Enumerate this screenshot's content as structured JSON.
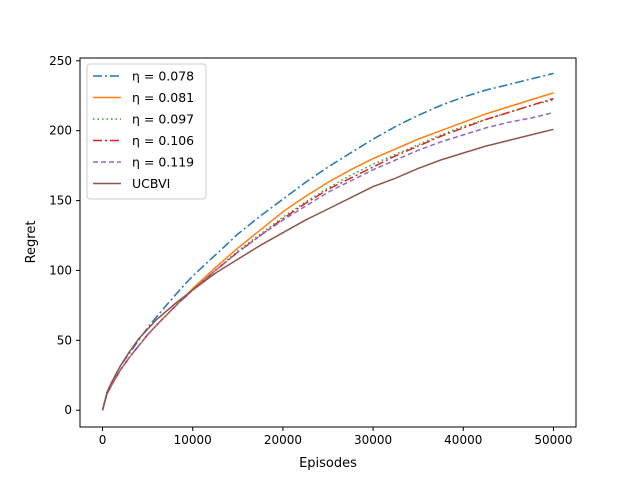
{
  "chart_data": {
    "type": "line",
    "title": "",
    "xlabel": "Episodes",
    "ylabel": "Regret",
    "xlim": [
      -2500,
      52500
    ],
    "ylim": [
      -12,
      252
    ],
    "xticks": [
      0,
      10000,
      20000,
      30000,
      40000,
      50000
    ],
    "yticks": [
      0,
      50,
      100,
      150,
      200,
      250
    ],
    "grid": false,
    "legend_position": "upper-left",
    "x": [
      0,
      500,
      1000,
      2000,
      3000,
      4000,
      5000,
      6000,
      8000,
      10000,
      12500,
      15000,
      17500,
      20000,
      22500,
      25000,
      27500,
      30000,
      32500,
      35000,
      37500,
      40000,
      42500,
      45000,
      47500,
      50000
    ],
    "series": [
      {
        "name": "η = 0.078",
        "color": "#1f77b4",
        "dash": "dashdot",
        "values": [
          0,
          13,
          20,
          32,
          41,
          50,
          59,
          67,
          82,
          96,
          111,
          126,
          139,
          151,
          163,
          174,
          184,
          194,
          203,
          211,
          218,
          224,
          229,
          233,
          237,
          241
        ]
      },
      {
        "name": "η = 0.081",
        "color": "#ff7f0e",
        "dash": "solid",
        "values": [
          0,
          12,
          18,
          29,
          38,
          46,
          54,
          61,
          74,
          87,
          102,
          116,
          129,
          142,
          153,
          163,
          172,
          180,
          187,
          194,
          200,
          206,
          212,
          217,
          222,
          227
        ]
      },
      {
        "name": "η = 0.097",
        "color": "#2ca02c",
        "dash": "dotted",
        "values": [
          0,
          12,
          18,
          29,
          38,
          46,
          54,
          61,
          74,
          86,
          100,
          114,
          126,
          138,
          149,
          159,
          168,
          176,
          183,
          190,
          197,
          203,
          208,
          213,
          218,
          222
        ]
      },
      {
        "name": "η = 0.106",
        "color": "#d62728",
        "dash": "dashdot",
        "values": [
          0,
          12,
          18,
          29,
          38,
          46,
          54,
          61,
          74,
          86,
          100,
          113,
          125,
          137,
          148,
          158,
          166,
          174,
          182,
          189,
          196,
          202,
          208,
          213,
          218,
          223
        ]
      },
      {
        "name": "η = 0.119",
        "color": "#9467bd",
        "dash": "dashed",
        "values": [
          0,
          12,
          18,
          29,
          38,
          46,
          54,
          61,
          74,
          86,
          100,
          113,
          125,
          136,
          146,
          156,
          164,
          172,
          179,
          186,
          192,
          197,
          202,
          206,
          209,
          213
        ]
      },
      {
        "name": "UCBVI",
        "color": "#8c564b",
        "dash": "solid",
        "values": [
          0,
          13,
          20,
          32,
          42,
          51,
          58,
          65,
          76,
          86,
          98,
          108,
          118,
          127,
          136,
          144,
          152,
          160,
          166,
          173,
          179,
          184,
          189,
          193,
          197,
          201
        ]
      }
    ]
  }
}
